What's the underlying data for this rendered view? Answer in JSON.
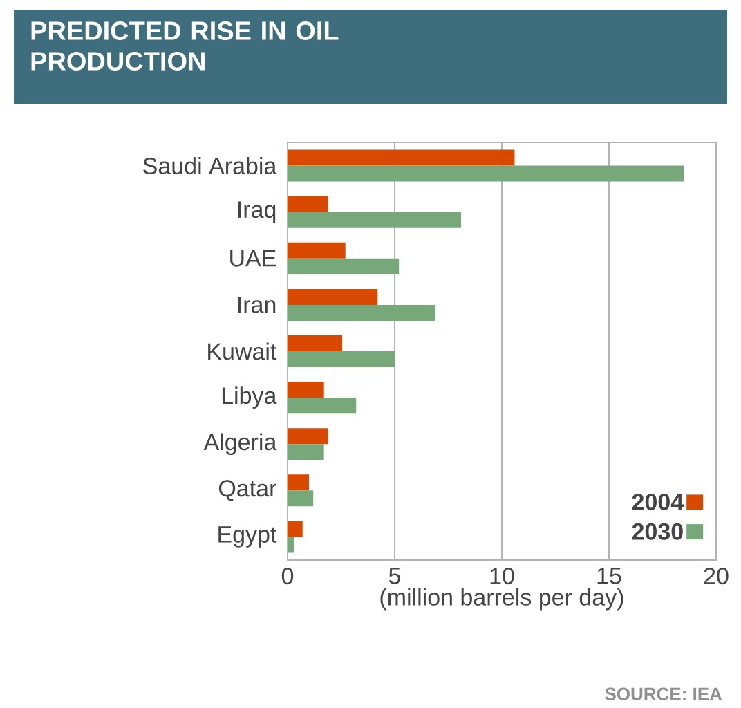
{
  "chart_data": {
    "type": "bar",
    "orientation": "horizontal",
    "title": "PREDICTED RISE IN OIL PRODUCTION",
    "xlabel": "(million barrels per day)",
    "categories": [
      "Saudi Arabia",
      "Iraq",
      "UAE",
      "Iran",
      "Kuwait",
      "Libya",
      "Algeria",
      "Qatar",
      "Egypt"
    ],
    "series": [
      {
        "name": "2004",
        "color": "#d94a00",
        "values": [
          10.6,
          1.9,
          2.7,
          4.2,
          2.55,
          1.7,
          1.9,
          1.0,
          0.7
        ]
      },
      {
        "name": "2030",
        "color": "#76a87a",
        "values": [
          18.5,
          8.1,
          5.2,
          6.9,
          5.0,
          3.2,
          1.7,
          1.2,
          0.3
        ]
      }
    ],
    "xlim": [
      0,
      20
    ],
    "xticks": [
      0,
      5,
      10,
      15,
      20
    ],
    "grid": "x",
    "legend": "bottom right",
    "annotations": [
      "SOURCE: IEA"
    ]
  }
}
